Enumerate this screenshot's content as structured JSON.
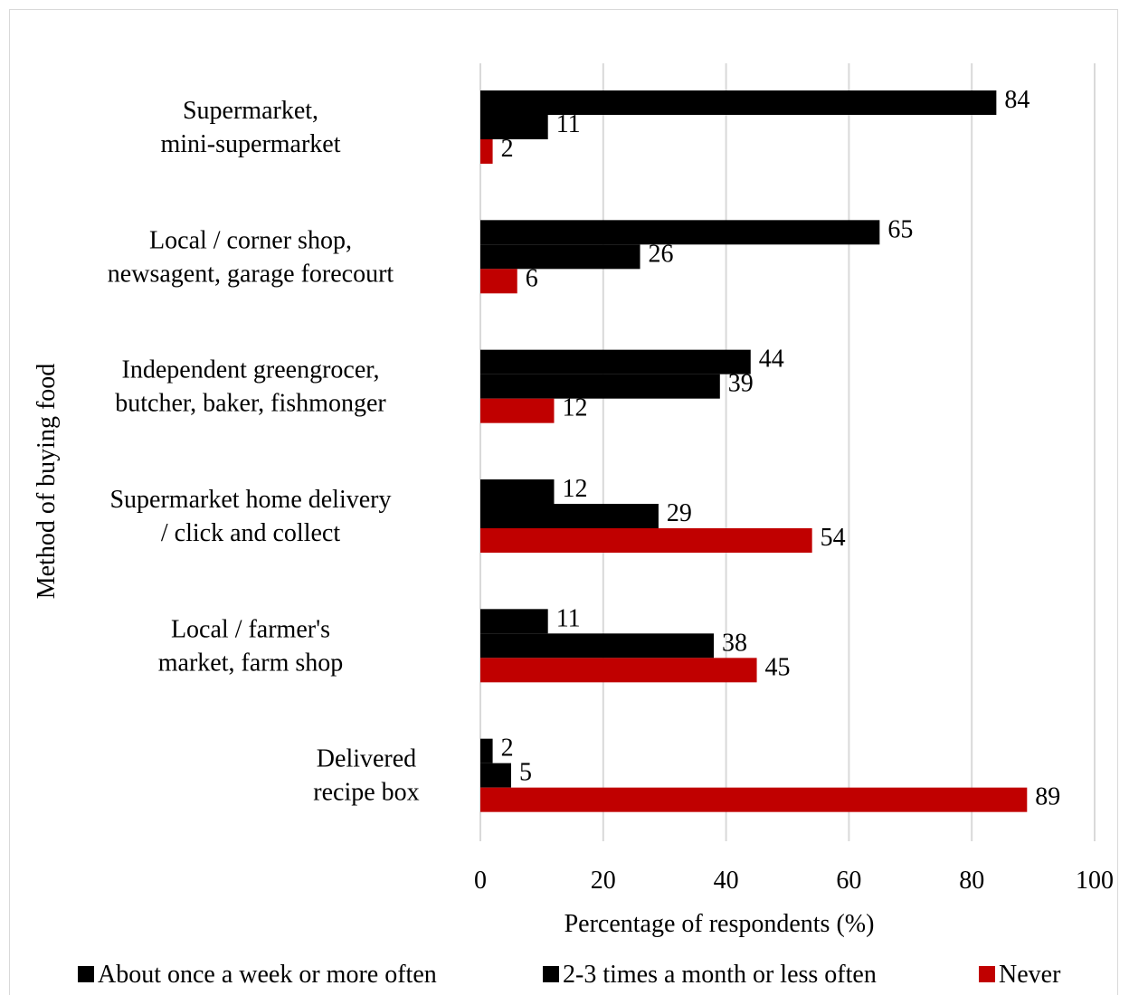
{
  "chart_data": {
    "type": "bar",
    "orientation": "horizontal",
    "categories": [
      [
        "Supermarket,",
        "mini-supermarket"
      ],
      [
        "Local / corner shop,",
        "newsagent, garage forecourt"
      ],
      [
        "Independent greengrocer,",
        "butcher, baker, fishmonger"
      ],
      [
        "Supermarket home delivery",
        "/ click and collect"
      ],
      [
        "Local / farmer's",
        "market, farm shop"
      ],
      [
        "Delivered",
        "recipe box"
      ]
    ],
    "series": [
      {
        "name": "About once a week or more often",
        "color": "#000000",
        "values": [
          84,
          65,
          44,
          12,
          11,
          2
        ]
      },
      {
        "name": "2-3 times a month or less often",
        "color": "#000000",
        "values": [
          11,
          26,
          39,
          29,
          38,
          5
        ]
      },
      {
        "name": "Never",
        "color": "#c00000",
        "values": [
          2,
          6,
          12,
          54,
          45,
          89
        ]
      }
    ],
    "xlabel": "Percentage of respondents (%)",
    "ylabel": "Method of buying food",
    "xlim": [
      0,
      100
    ],
    "xticks": [
      0,
      20,
      40,
      60,
      80,
      100
    ],
    "grid": true,
    "legend": "bottom"
  }
}
